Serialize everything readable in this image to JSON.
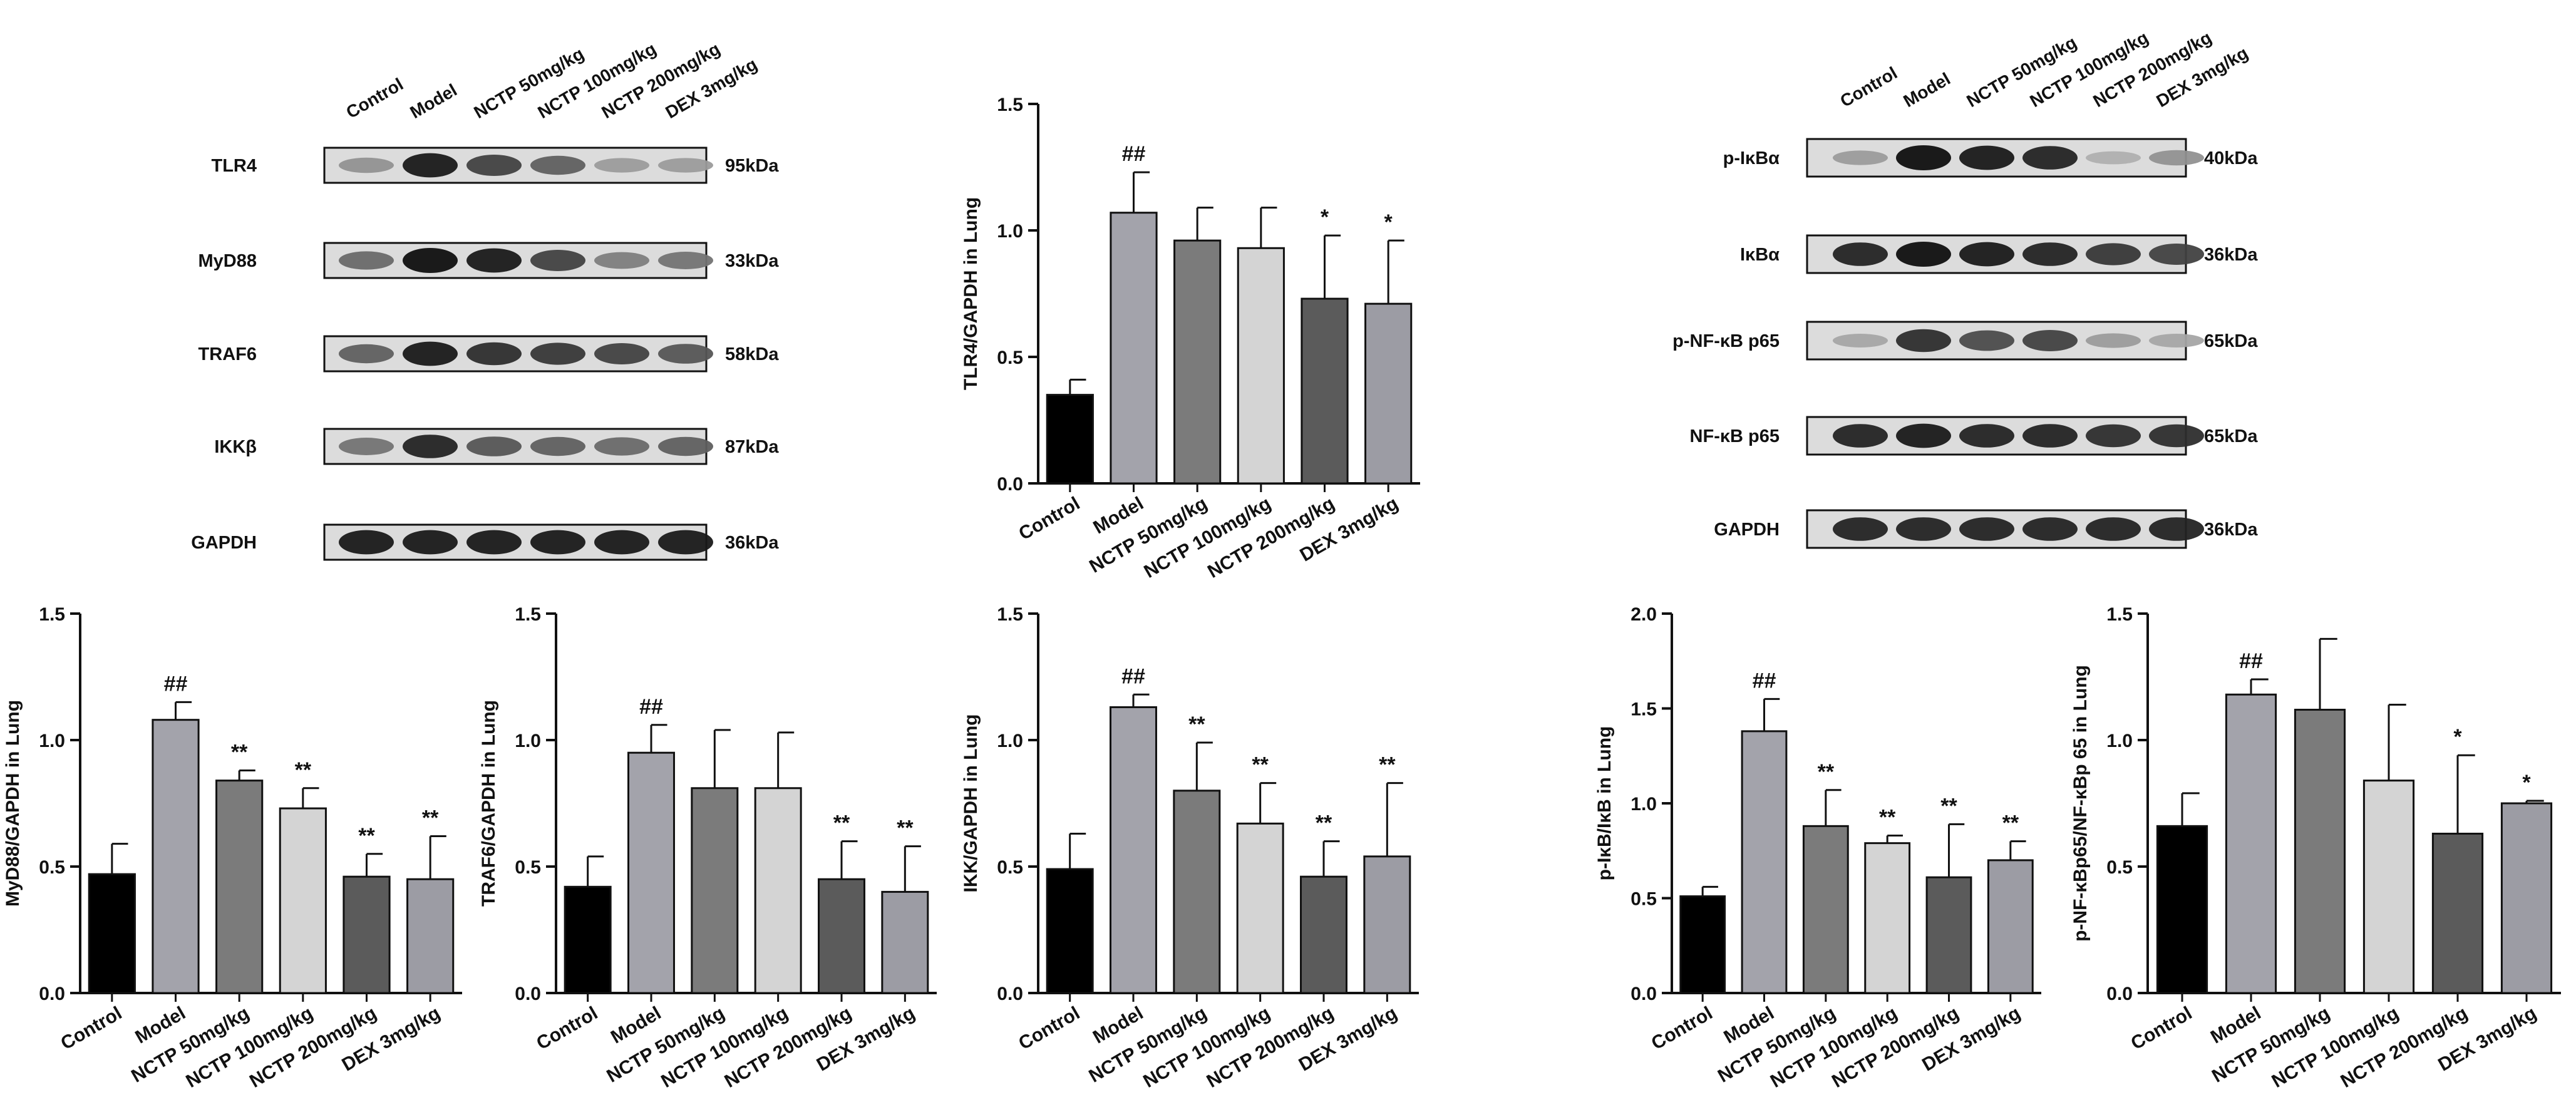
{
  "conditions": [
    "Control",
    "Model",
    "NCTP 50mg/kg",
    "NCTP 100mg/kg",
    "NCTP 200mg/kg",
    "DEX 3mg/kg"
  ],
  "colors": {
    "Control": "#000000",
    "Model": "#a3a3ab",
    "NCTP 50mg/kg": "#7b7b7b",
    "NCTP 100mg/kg": "#d4d4d4",
    "NCTP 200mg/kg": "#5b5b5b",
    "DEX 3mg/kg": "#9c9ca4"
  },
  "blots": [
    {
      "id": "blot-left",
      "lanes": [
        "Control",
        "Model",
        "NCTP 50mg/kg",
        "NCTP 100mg/kg",
        "NCTP 200mg/kg",
        "DEX 3mg/kg"
      ],
      "rows": [
        {
          "protein": "TLR4",
          "size": "95kDa",
          "intensity": [
            0.35,
            0.95,
            0.75,
            0.6,
            0.3,
            0.3
          ]
        },
        {
          "protein": "MyD88",
          "size": "33kDa",
          "intensity": [
            0.55,
            1.0,
            0.95,
            0.75,
            0.45,
            0.5
          ]
        },
        {
          "protein": "TRAF6",
          "size": "58kDa",
          "intensity": [
            0.6,
            0.95,
            0.85,
            0.8,
            0.75,
            0.65
          ]
        },
        {
          "protein": "IKKβ",
          "size": "87kDa",
          "intensity": [
            0.5,
            0.9,
            0.65,
            0.6,
            0.55,
            0.6
          ]
        },
        {
          "protein": "GAPDH",
          "size": "36kDa",
          "intensity": [
            0.95,
            0.95,
            0.95,
            0.95,
            0.95,
            0.95
          ]
        }
      ]
    },
    {
      "id": "blot-right",
      "lanes": [
        "Control",
        "Model",
        "NCTP 50mg/kg",
        "NCTP 100mg/kg",
        "NCTP 200mg/kg",
        "DEX 3mg/kg"
      ],
      "rows": [
        {
          "protein": "p-IκBα",
          "size": "40kDa",
          "intensity": [
            0.3,
            1.0,
            0.95,
            0.9,
            0.2,
            0.35
          ]
        },
        {
          "protein": "IκBα",
          "size": "36kDa",
          "intensity": [
            0.9,
            1.0,
            0.95,
            0.9,
            0.8,
            0.75
          ]
        },
        {
          "protein": "p-NF-κB p65",
          "size": "65kDa",
          "intensity": [
            0.25,
            0.85,
            0.7,
            0.75,
            0.3,
            0.25
          ]
        },
        {
          "protein": "NF-κB p65",
          "size": "65kDa",
          "intensity": [
            0.9,
            0.95,
            0.9,
            0.9,
            0.85,
            0.85
          ]
        },
        {
          "protein": "GAPDH",
          "size": "36kDa",
          "intensity": [
            0.9,
            0.9,
            0.9,
            0.9,
            0.9,
            0.9
          ]
        }
      ]
    }
  ],
  "chart_data": [
    {
      "id": "tlr4",
      "type": "bar",
      "categories": [
        "Control",
        "Model",
        "NCTP 50mg/kg",
        "NCTP 100mg/kg",
        "NCTP 200mg/kg",
        "DEX 3mg/kg"
      ],
      "values": [
        0.35,
        1.07,
        0.96,
        0.93,
        0.73,
        0.71
      ],
      "errors": [
        0.06,
        0.16,
        0.13,
        0.16,
        0.25,
        0.25
      ],
      "annotations": [
        "",
        "##",
        "",
        "",
        "*",
        "*"
      ],
      "ylabel": "TLR4/GAPDH in Lung",
      "ylim": [
        0,
        1.5
      ],
      "yticks": [
        "0.0",
        "0.5",
        "1.0",
        "1.5"
      ]
    },
    {
      "id": "myd88",
      "type": "bar",
      "categories": [
        "Control",
        "Model",
        "NCTP 50mg/kg",
        "NCTP 100mg/kg",
        "NCTP 200mg/kg",
        "DEX 3mg/kg"
      ],
      "values": [
        0.47,
        1.08,
        0.84,
        0.73,
        0.46,
        0.45
      ],
      "errors": [
        0.12,
        0.07,
        0.04,
        0.08,
        0.09,
        0.17
      ],
      "annotations": [
        "",
        "##",
        "**",
        "**",
        "**",
        "**"
      ],
      "ylabel": "MyD88/GAPDH in Lung",
      "ylim": [
        0,
        1.5
      ],
      "yticks": [
        "0.0",
        "0.5",
        "1.0",
        "1.5"
      ]
    },
    {
      "id": "traf6",
      "type": "bar",
      "categories": [
        "Control",
        "Model",
        "NCTP 50mg/kg",
        "NCTP 100mg/kg",
        "NCTP 200mg/kg",
        "DEX 3mg/kg"
      ],
      "values": [
        0.42,
        0.95,
        0.81,
        0.81,
        0.45,
        0.4
      ],
      "errors": [
        0.12,
        0.11,
        0.23,
        0.22,
        0.15,
        0.18
      ],
      "annotations": [
        "",
        "##",
        "",
        "",
        "**",
        "**"
      ],
      "ylabel": "TRAF6/GAPDH in Lung",
      "ylim": [
        0,
        1.5
      ],
      "yticks": [
        "0.0",
        "0.5",
        "1.0",
        "1.5"
      ]
    },
    {
      "id": "ikk",
      "type": "bar",
      "categories": [
        "Control",
        "Model",
        "NCTP 50mg/kg",
        "NCTP 100mg/kg",
        "NCTP 200mg/kg",
        "DEX 3mg/kg"
      ],
      "values": [
        0.49,
        1.13,
        0.8,
        0.67,
        0.46,
        0.54
      ],
      "errors": [
        0.14,
        0.05,
        0.19,
        0.16,
        0.14,
        0.29
      ],
      "annotations": [
        "",
        "##",
        "**",
        "**",
        "**",
        "**"
      ],
      "ylabel": "IKK/GAPDH in Lung",
      "ylim": [
        0,
        1.5
      ],
      "yticks": [
        "0.0",
        "0.5",
        "1.0",
        "1.5"
      ]
    },
    {
      "id": "pikb",
      "type": "bar",
      "categories": [
        "Control",
        "Model",
        "NCTP 50mg/kg",
        "NCTP 100mg/kg",
        "NCTP 200mg/kg",
        "DEX 3mg/kg"
      ],
      "values": [
        0.51,
        1.38,
        0.88,
        0.79,
        0.61,
        0.7
      ],
      "errors": [
        0.05,
        0.17,
        0.19,
        0.04,
        0.28,
        0.1
      ],
      "annotations": [
        "",
        "##",
        "**",
        "**",
        "**",
        "**"
      ],
      "ylabel": "p-IκB/IκB in Lung",
      "ylim": [
        0,
        2.0
      ],
      "yticks": [
        "0.0",
        "0.5",
        "1.0",
        "1.5",
        "2.0"
      ]
    },
    {
      "id": "pnfkb",
      "type": "bar",
      "categories": [
        "Control",
        "Model",
        "NCTP 50mg/kg",
        "NCTP 100mg/kg",
        "NCTP 200mg/kg",
        "DEX 3mg/kg"
      ],
      "values": [
        0.66,
        1.18,
        1.12,
        0.84,
        0.63,
        0.75
      ],
      "errors": [
        0.13,
        0.06,
        0.28,
        0.3,
        0.31,
        0.01
      ],
      "annotations": [
        "",
        "##",
        "",
        "",
        "*",
        "*"
      ],
      "ylabel": "p-NF-κBp65/NF-κBp 65 in Lung",
      "ylim": [
        0,
        1.5
      ],
      "yticks": [
        "0.0",
        "0.5",
        "1.0",
        "1.5"
      ]
    }
  ]
}
